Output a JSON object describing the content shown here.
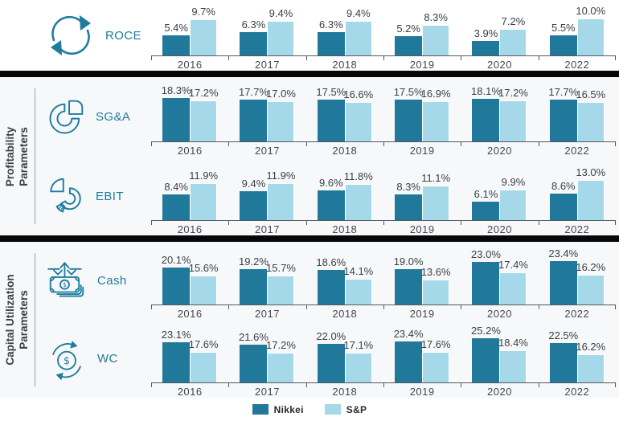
{
  "colors": {
    "nikkei": "#20799b",
    "sp": "#a5d9ea",
    "icon": "#1e7d9e",
    "metric_label": "#1e7d9e",
    "value_text": "#3b4046",
    "year_text": "#44484e",
    "axis": "#55585e",
    "section_bg": "#f7f8f9",
    "separator": "#070707",
    "side_label_text": "#3b4046",
    "divider_line": "#9aa0a6",
    "legend_text": "#262b31",
    "background": "#ffffff"
  },
  "side_sections": {
    "profitability": {
      "line1": "Profitability",
      "line2": "Parameters"
    },
    "capital": {
      "line1": "Capital Utilization",
      "line2": "Parameters"
    }
  },
  "legend": {
    "items": [
      {
        "label": "Nikkei",
        "color": "#20799b"
      },
      {
        "label": "S&P",
        "color": "#a5d9ea"
      }
    ]
  },
  "chart_data": [
    {
      "type": "bar",
      "title": "ROCE",
      "unit": "%",
      "categories": [
        "2016",
        "2017",
        "2018",
        "2019",
        "2020",
        "2022"
      ],
      "series": [
        {
          "name": "Nikkei",
          "values": [
            5.4,
            6.3,
            6.3,
            5.2,
            3.9,
            5.5
          ]
        },
        {
          "name": "S&P",
          "values": [
            9.7,
            9.4,
            9.4,
            8.3,
            7.2,
            10.0
          ]
        }
      ],
      "legend_position": "bottom",
      "grid": false,
      "value_labels": true
    },
    {
      "type": "bar",
      "title": "SG&A",
      "unit": "%",
      "categories": [
        "2016",
        "2017",
        "2018",
        "2019",
        "2020",
        "2022"
      ],
      "series": [
        {
          "name": "Nikkei",
          "values": [
            18.3,
            17.7,
            17.5,
            17.5,
            18.1,
            17.7
          ]
        },
        {
          "name": "S&P",
          "values": [
            17.2,
            17.0,
            16.6,
            16.9,
            17.2,
            16.5
          ]
        }
      ],
      "legend_position": "bottom",
      "grid": false,
      "value_labels": true
    },
    {
      "type": "bar",
      "title": "EBIT",
      "unit": "%",
      "categories": [
        "2016",
        "2017",
        "2018",
        "2019",
        "2020",
        "2022"
      ],
      "series": [
        {
          "name": "Nikkei",
          "values": [
            8.4,
            9.4,
            9.6,
            8.3,
            6.1,
            8.6
          ]
        },
        {
          "name": "S&P",
          "values": [
            11.9,
            11.9,
            11.8,
            11.1,
            9.9,
            13.0
          ]
        }
      ],
      "legend_position": "bottom",
      "grid": false,
      "value_labels": true
    },
    {
      "type": "bar",
      "title": "Cash",
      "unit": "%",
      "categories": [
        "2016",
        "2017",
        "2018",
        "2019",
        "2020",
        "2022"
      ],
      "series": [
        {
          "name": "Nikkei",
          "values": [
            20.1,
            19.2,
            18.6,
            19.0,
            23.0,
            23.4
          ]
        },
        {
          "name": "S&P",
          "values": [
            15.6,
            15.7,
            14.1,
            13.6,
            17.4,
            16.2
          ]
        }
      ],
      "legend_position": "bottom",
      "grid": false,
      "value_labels": true
    },
    {
      "type": "bar",
      "title": "WC",
      "unit": "%",
      "categories": [
        "2016",
        "2017",
        "2018",
        "2019",
        "2020",
        "2022"
      ],
      "series": [
        {
          "name": "Nikkei",
          "values": [
            23.1,
            21.6,
            22.0,
            23.4,
            25.2,
            22.5
          ]
        },
        {
          "name": "S&P",
          "values": [
            17.6,
            17.2,
            17.1,
            17.6,
            18.4,
            16.2
          ]
        }
      ],
      "legend_position": "bottom",
      "grid": false,
      "value_labels": true
    }
  ]
}
